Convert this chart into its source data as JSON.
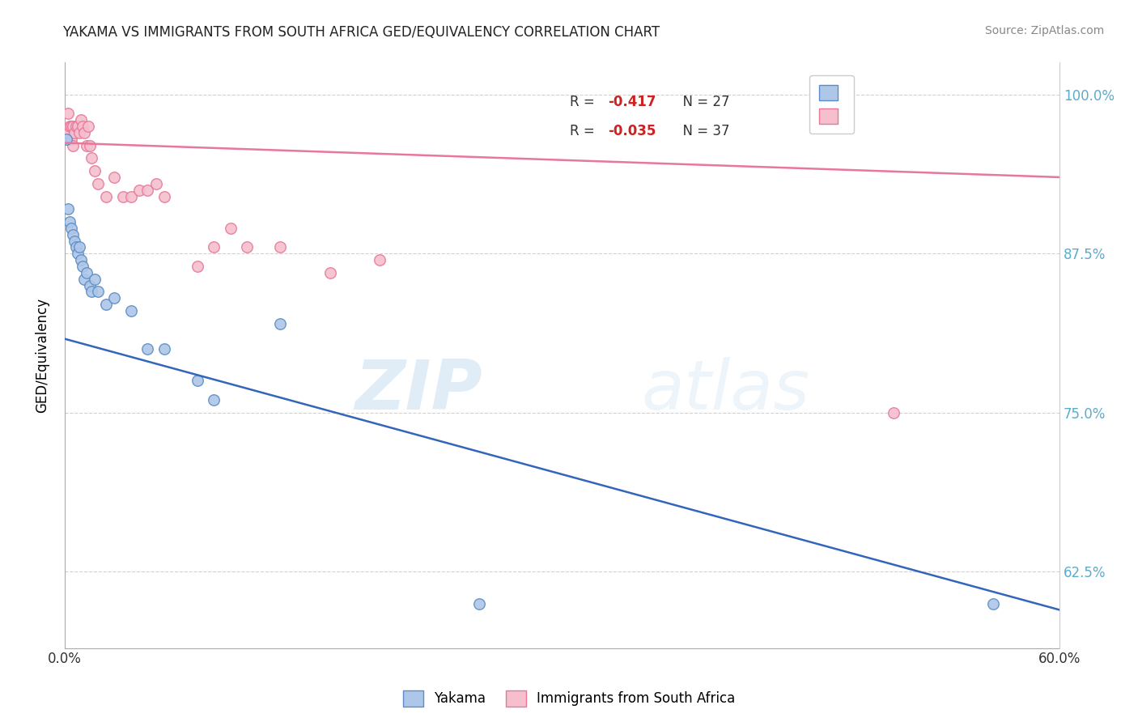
{
  "title": "YAKAMA VS IMMIGRANTS FROM SOUTH AFRICA GED/EQUIVALENCY CORRELATION CHART",
  "source": "Source: ZipAtlas.com",
  "ylabel": "GED/Equivalency",
  "xlim": [
    0.0,
    0.6
  ],
  "ylim": [
    0.565,
    1.025
  ],
  "xticks": [
    0.0,
    0.1,
    0.2,
    0.3,
    0.4,
    0.5,
    0.6
  ],
  "xticklabels": [
    "0.0%",
    "",
    "",
    "",
    "",
    "",
    "60.0%"
  ],
  "yticks": [
    0.625,
    0.75,
    0.875,
    1.0
  ],
  "yticklabels_right": [
    "62.5%",
    "75.0%",
    "87.5%",
    "100.0%"
  ],
  "legend_r1": "R = ",
  "legend_r1_val": "-0.417",
  "legend_n1": "N = 27",
  "legend_r2": "R = ",
  "legend_r2_val": "-0.035",
  "legend_n2": "N = 37",
  "blue_color": "#aec6e8",
  "blue_edge": "#5b8ec4",
  "pink_color": "#f5bfce",
  "pink_edge": "#e8789a",
  "blue_line_color": "#3366bb",
  "pink_line_color": "#e8789a",
  "watermark_zip": "ZIP",
  "watermark_atlas": "atlas",
  "blue_x": [
    0.001,
    0.002,
    0.003,
    0.004,
    0.005,
    0.006,
    0.007,
    0.008,
    0.009,
    0.01,
    0.011,
    0.012,
    0.013,
    0.015,
    0.016,
    0.018,
    0.02,
    0.025,
    0.03,
    0.04,
    0.05,
    0.06,
    0.08,
    0.09,
    0.13,
    0.25,
    0.56
  ],
  "blue_y": [
    0.965,
    0.91,
    0.9,
    0.895,
    0.89,
    0.885,
    0.88,
    0.875,
    0.88,
    0.87,
    0.865,
    0.855,
    0.86,
    0.85,
    0.845,
    0.855,
    0.845,
    0.835,
    0.84,
    0.83,
    0.8,
    0.8,
    0.775,
    0.76,
    0.82,
    0.6,
    0.6
  ],
  "pink_x": [
    0.001,
    0.002,
    0.002,
    0.003,
    0.004,
    0.004,
    0.005,
    0.005,
    0.006,
    0.007,
    0.008,
    0.009,
    0.01,
    0.011,
    0.012,
    0.013,
    0.014,
    0.015,
    0.016,
    0.018,
    0.02,
    0.025,
    0.03,
    0.035,
    0.04,
    0.045,
    0.05,
    0.055,
    0.06,
    0.08,
    0.09,
    0.1,
    0.11,
    0.13,
    0.16,
    0.19,
    0.5
  ],
  "pink_y": [
    0.965,
    0.97,
    0.985,
    0.975,
    0.975,
    0.965,
    0.975,
    0.96,
    0.97,
    0.975,
    0.975,
    0.97,
    0.98,
    0.975,
    0.97,
    0.96,
    0.975,
    0.96,
    0.95,
    0.94,
    0.93,
    0.92,
    0.935,
    0.92,
    0.92,
    0.925,
    0.925,
    0.93,
    0.92,
    0.865,
    0.88,
    0.895,
    0.88,
    0.88,
    0.86,
    0.87,
    0.75
  ],
  "blue_trend_x": [
    0.0,
    0.6
  ],
  "blue_trend_y": [
    0.808,
    0.595
  ],
  "pink_trend_x": [
    0.0,
    0.6
  ],
  "pink_trend_y": [
    0.962,
    0.935
  ],
  "marker_size": 95,
  "bg_color": "#ffffff",
  "grid_color": "#cccccc",
  "right_tick_color": "#5aaccc"
}
